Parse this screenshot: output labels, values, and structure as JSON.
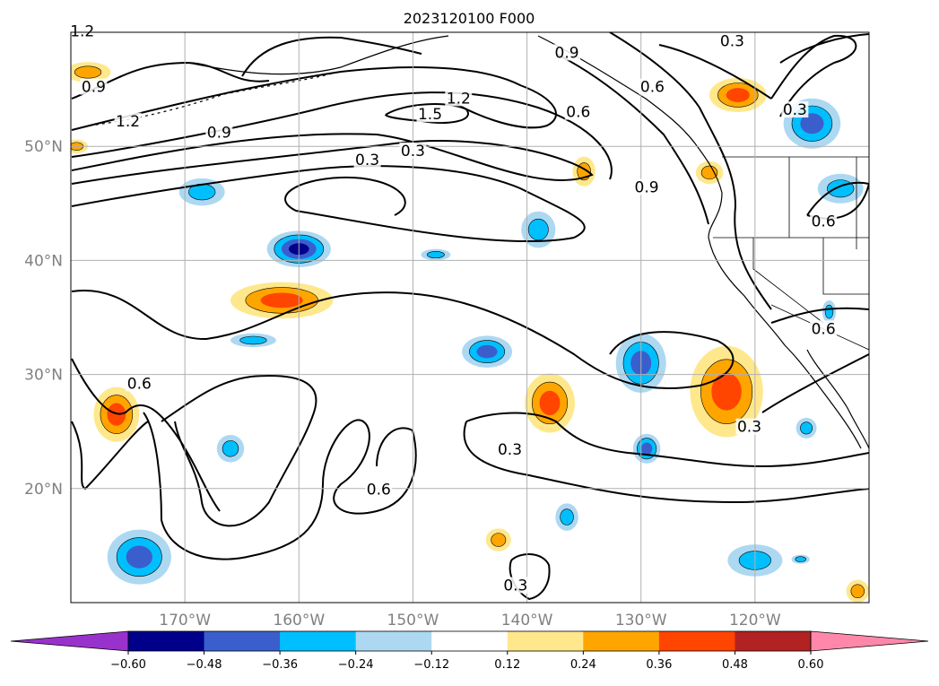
{
  "title": "2023120100 F000",
  "lat_ticks": [
    {
      "label": "50°N",
      "lat": 50
    },
    {
      "label": "40°N",
      "lat": 40
    },
    {
      "label": "30°N",
      "lat": 30
    },
    {
      "label": "20°N",
      "lat": 20
    }
  ],
  "lon_ticks": [
    {
      "label": "170°W",
      "lon": -170
    },
    {
      "label": "160°W",
      "lon": -160
    },
    {
      "label": "150°W",
      "lon": -150
    },
    {
      "label": "140°W",
      "lon": -140
    },
    {
      "label": "130°W",
      "lon": -130
    },
    {
      "label": "120°W",
      "lon": -120
    }
  ],
  "extent": {
    "lon_min": -180,
    "lon_max": -110,
    "lat_min": 10,
    "lat_max": 60
  },
  "colorbar": {
    "ticks": [
      "−0.60",
      "−0.48",
      "−0.36",
      "−0.24",
      "−0.12",
      "0.12",
      "0.24",
      "0.36",
      "0.48",
      "0.60"
    ],
    "colors": [
      "#9932cc",
      "#00008b",
      "#3a5fcd",
      "#00bfff",
      "#add8f2",
      "#ffffff",
      "#ffe88c",
      "#ffa500",
      "#ff4500",
      "#b22222",
      "#ff88aa"
    ],
    "extend": "both"
  },
  "contour_labels": [
    {
      "text": "1.2",
      "lon": -179,
      "lat": 59.9
    },
    {
      "text": "0.3",
      "lon": -122,
      "lat": 59
    },
    {
      "text": "0.9",
      "lon": -136.5,
      "lat": 58
    },
    {
      "text": "0.9",
      "lon": -178,
      "lat": 55
    },
    {
      "text": "0.6",
      "lon": -129,
      "lat": 55
    },
    {
      "text": "1.2",
      "lon": -146,
      "lat": 54
    },
    {
      "text": "0.6",
      "lon": -135.5,
      "lat": 52.8
    },
    {
      "text": "0.3",
      "lon": -116.5,
      "lat": 53
    },
    {
      "text": "1.2",
      "lon": -175,
      "lat": 52
    },
    {
      "text": "1.5",
      "lon": -148.5,
      "lat": 52.6
    },
    {
      "text": "0.9",
      "lon": -167,
      "lat": 51
    },
    {
      "text": "0.3",
      "lon": -150,
      "lat": 49.4
    },
    {
      "text": "0.3",
      "lon": -154,
      "lat": 48.6
    },
    {
      "text": "0.9",
      "lon": -129.5,
      "lat": 46.2
    },
    {
      "text": "0.6",
      "lon": -114,
      "lat": 43.2
    },
    {
      "text": "0.6",
      "lon": -114,
      "lat": 33.8
    },
    {
      "text": "0.6",
      "lon": -174,
      "lat": 29
    },
    {
      "text": "0.3",
      "lon": -120.5,
      "lat": 25.2
    },
    {
      "text": "0.3",
      "lon": -141.5,
      "lat": 23.2
    },
    {
      "text": "0.6",
      "lon": -153,
      "lat": 19.7
    },
    {
      "text": "0.3",
      "lon": -141,
      "lat": 11.3
    }
  ],
  "shaded_regions": [
    {
      "lon": -160,
      "lat": 41,
      "rx": 2.8,
      "ry": 1.6,
      "levels": [
        "#add8f2",
        "#00bfff",
        "#3a5fcd",
        "#00008b"
      ]
    },
    {
      "lon": -168.5,
      "lat": 46,
      "rx": 2,
      "ry": 1.2,
      "levels": [
        "#add8f2",
        "#00bfff"
      ]
    },
    {
      "lon": -161.5,
      "lat": 36.5,
      "rx": 4.5,
      "ry": 1.6,
      "levels": [
        "#ffe88c",
        "#ffa500",
        "#ff4500"
      ]
    },
    {
      "lon": -164,
      "lat": 33,
      "rx": 2,
      "ry": 0.6,
      "levels": [
        "#add8f2",
        "#00bfff"
      ]
    },
    {
      "lon": -176,
      "lat": 26.5,
      "rx": 2,
      "ry": 2.4,
      "levels": [
        "#ffe88c",
        "#ffa500",
        "#ff4500"
      ]
    },
    {
      "lon": -166,
      "lat": 23.5,
      "rx": 1.2,
      "ry": 1.2,
      "levels": [
        "#add8f2",
        "#00bfff"
      ]
    },
    {
      "lon": -174,
      "lat": 14,
      "rx": 2.8,
      "ry": 2.4,
      "levels": [
        "#add8f2",
        "#00bfff",
        "#3a5fcd"
      ]
    },
    {
      "lon": -143.5,
      "lat": 32,
      "rx": 2.2,
      "ry": 1.4,
      "levels": [
        "#add8f2",
        "#00bfff",
        "#3a5fcd"
      ]
    },
    {
      "lon": -138,
      "lat": 27.5,
      "rx": 2.2,
      "ry": 2.6,
      "levels": [
        "#ffe88c",
        "#ffa500",
        "#ff4500"
      ]
    },
    {
      "lon": -130,
      "lat": 31,
      "rx": 2.2,
      "ry": 2.6,
      "levels": [
        "#add8f2",
        "#00bfff",
        "#3a5fcd"
      ]
    },
    {
      "lon": -129.5,
      "lat": 23.5,
      "rx": 1.2,
      "ry": 1.3,
      "levels": [
        "#add8f2",
        "#00bfff",
        "#3a5fcd"
      ]
    },
    {
      "lon": -122.5,
      "lat": 28.5,
      "rx": 3.2,
      "ry": 4,
      "levels": [
        "#ffe88c",
        "#ffa500",
        "#ff4500"
      ]
    },
    {
      "lon": -139,
      "lat": 42.7,
      "rx": 1.5,
      "ry": 1.6,
      "levels": [
        "#add8f2",
        "#00bfff"
      ]
    },
    {
      "lon": -121.5,
      "lat": 54.5,
      "rx": 2.5,
      "ry": 1.5,
      "levels": [
        "#ffe88c",
        "#ffa500",
        "#ff4500"
      ]
    },
    {
      "lon": -115,
      "lat": 52,
      "rx": 2.5,
      "ry": 2.2,
      "levels": [
        "#add8f2",
        "#00bfff",
        "#3a5fcd"
      ]
    },
    {
      "lon": -112.5,
      "lat": 46.3,
      "rx": 2,
      "ry": 1.3,
      "levels": [
        "#add8f2",
        "#00bfff"
      ]
    },
    {
      "lon": -120,
      "lat": 13.7,
      "rx": 2.4,
      "ry": 1.4,
      "levels": [
        "#add8f2",
        "#00bfff"
      ]
    },
    {
      "lon": -142.5,
      "lat": 15.5,
      "rx": 1.1,
      "ry": 1,
      "levels": [
        "#ffe88c",
        "#ffa500"
      ]
    },
    {
      "lon": -136.5,
      "lat": 17.5,
      "rx": 1,
      "ry": 1.2,
      "levels": [
        "#add8f2",
        "#00bfff"
      ]
    },
    {
      "lon": -135,
      "lat": 47.8,
      "rx": 1,
      "ry": 1.3,
      "levels": [
        "#ffe88c",
        "#ffa500"
      ]
    },
    {
      "lon": -124,
      "lat": 47.7,
      "rx": 1.2,
      "ry": 1,
      "levels": [
        "#ffe88c",
        "#ffa500"
      ]
    },
    {
      "lon": -178.5,
      "lat": 56.5,
      "rx": 2,
      "ry": 0.9,
      "levels": [
        "#ffe88c",
        "#ffa500"
      ]
    },
    {
      "lon": -179.5,
      "lat": 50,
      "rx": 1,
      "ry": 0.6,
      "levels": [
        "#ffe88c",
        "#ffa500"
      ]
    },
    {
      "lon": -115.5,
      "lat": 25.3,
      "rx": 0.9,
      "ry": 0.9,
      "levels": [
        "#add8f2",
        "#00bfff"
      ]
    },
    {
      "lon": -116,
      "lat": 13.8,
      "rx": 0.8,
      "ry": 0.4,
      "levels": [
        "#add8f2",
        "#00bfff"
      ]
    },
    {
      "lon": -148,
      "lat": 40.5,
      "rx": 1.3,
      "ry": 0.5,
      "levels": [
        "#add8f2",
        "#00bfff"
      ]
    },
    {
      "lon": -111,
      "lat": 11,
      "rx": 1,
      "ry": 1,
      "levels": [
        "#ffe88c",
        "#ffa500"
      ]
    },
    {
      "lon": -113.5,
      "lat": 35.5,
      "rx": 0.6,
      "ry": 1,
      "levels": [
        "#add8f2",
        "#00bfff"
      ]
    }
  ]
}
